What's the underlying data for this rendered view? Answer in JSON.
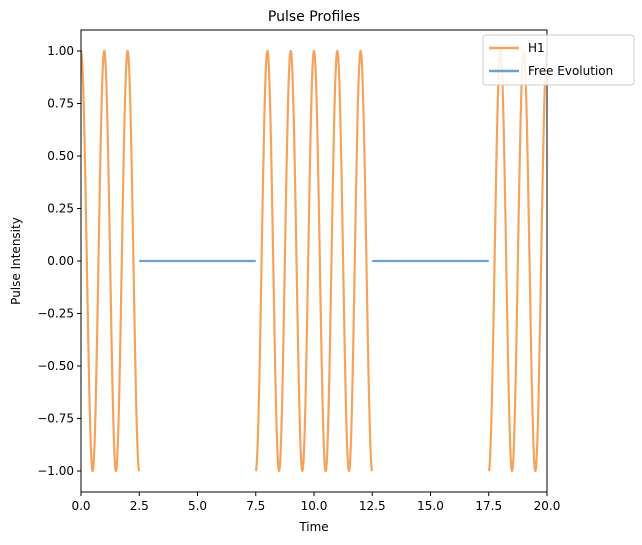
{
  "chart_data": {
    "type": "line",
    "title": "Pulse Profiles",
    "xlabel": "Time",
    "ylabel": "Pulse Intensity",
    "xlim": [
      0,
      20
    ],
    "ylim": [
      -1.1,
      1.1
    ],
    "xticks": [
      0,
      2.5,
      5,
      7.5,
      10,
      12.5,
      15,
      17.5,
      20
    ],
    "xtick_labels": [
      "0.0",
      "2.5",
      "5.0",
      "7.5",
      "10.0",
      "12.5",
      "15.0",
      "17.5",
      "20.0"
    ],
    "yticks": [
      1,
      0.75,
      0.5,
      0.25,
      0,
      -0.25,
      -0.5,
      -0.75,
      -1
    ],
    "ytick_labels": [
      "1.00",
      "0.75",
      "0.50",
      "0.25",
      "0.00",
      "−0.25",
      "−0.50",
      "−0.75",
      "−1.00"
    ],
    "grid": false,
    "legend_position": "top-right",
    "series": [
      {
        "name": "H1",
        "color": "#f5a35c",
        "function": "cos(2*pi*t)",
        "segments": [
          [
            0,
            2.5
          ],
          [
            7.5,
            12.5
          ],
          [
            17.5,
            20
          ]
        ]
      },
      {
        "name": "Free Evolution",
        "color": "#6aa3c9",
        "function": "0",
        "segments": [
          [
            2.5,
            7.5
          ],
          [
            12.5,
            17.5
          ]
        ]
      }
    ]
  }
}
